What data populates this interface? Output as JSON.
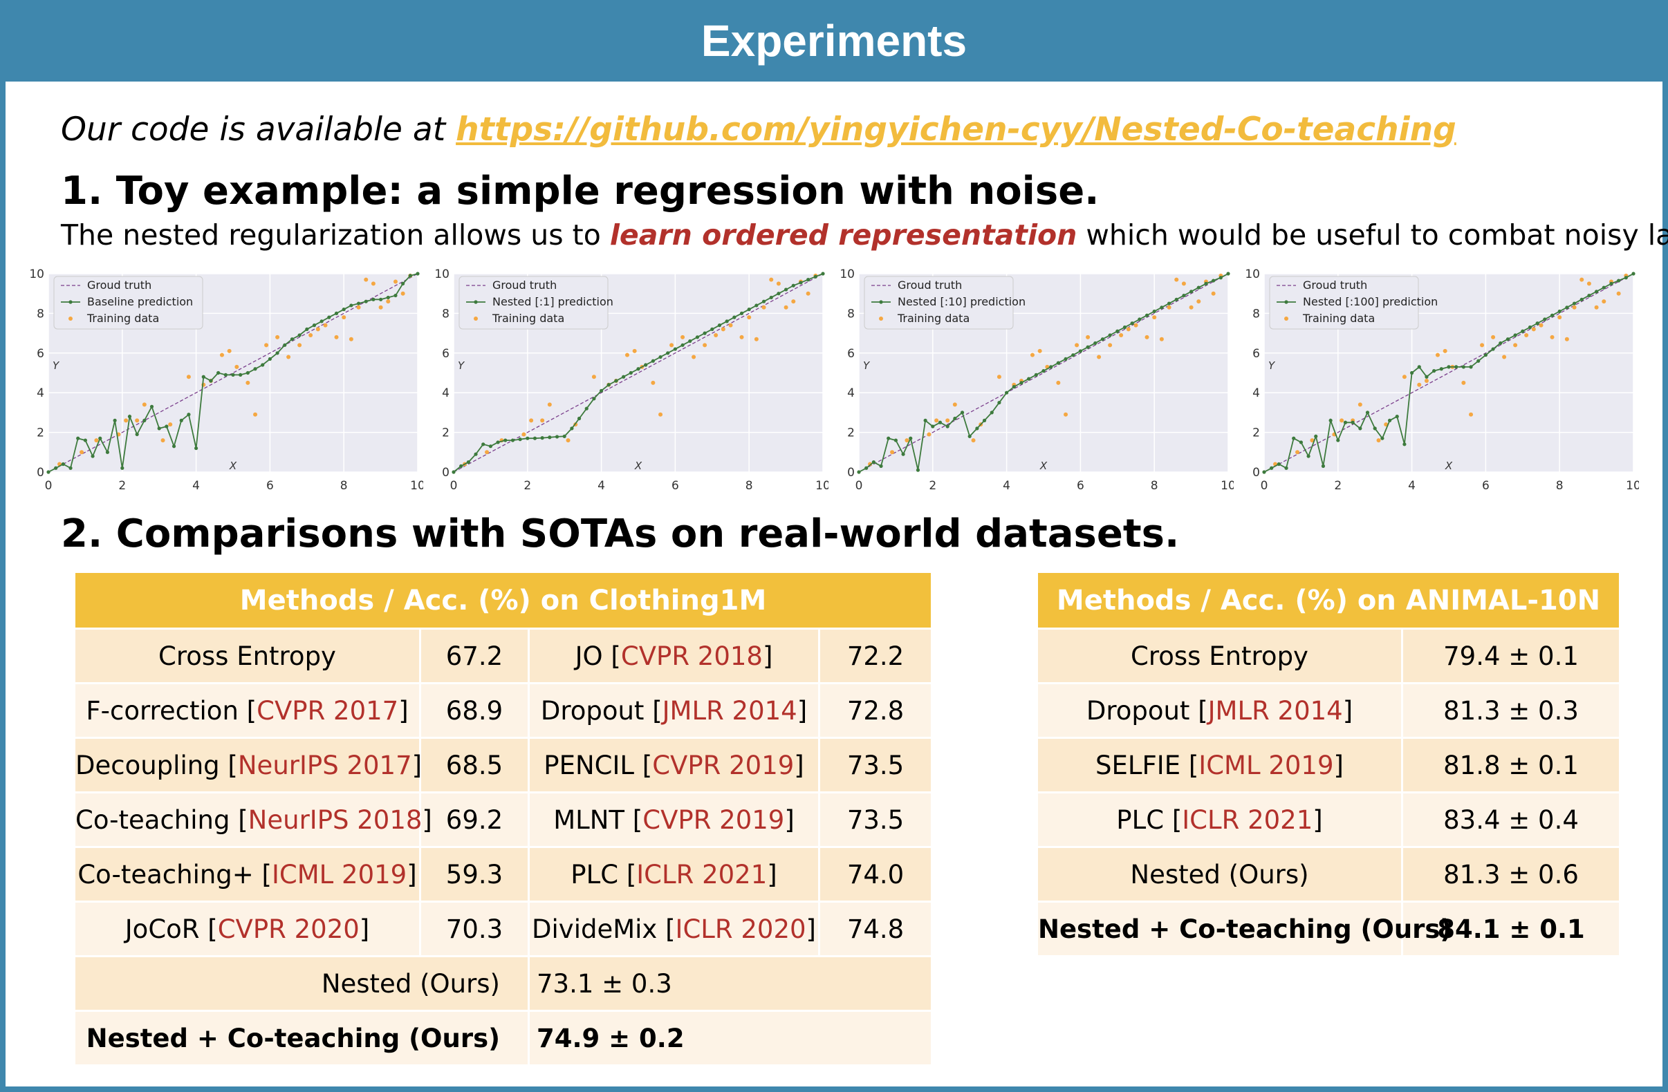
{
  "title": "Experiments",
  "code_line": {
    "prefix": "Our code is available at ",
    "url": "https://github.com/yingyichen-cyy/Nested-Co-teaching"
  },
  "section1": {
    "title": "1.  Toy example: a simple regression with noise.",
    "desc_before": "The nested regularization allows us to ",
    "desc_emphasis": "learn ordered representation",
    "desc_after": " which would be useful to combat noisy label."
  },
  "section2": {
    "title": "2. Comparisons with SOTAs on real-world datasets."
  },
  "colors": {
    "banner": "#3f87ad",
    "link": "#f2bb3d",
    "emphasis": "#b2312b",
    "table_header": "#f2c03c",
    "row_odd": "#fbe9cd",
    "row_even": "#fdf3e6",
    "prediction": "#3d7a3d",
    "truth": "#7b3f8c",
    "training": "#f5a742"
  },
  "chart_data": [
    {
      "type": "line",
      "xlabel": "X",
      "ylabel": "Y",
      "xlim": [
        0,
        10
      ],
      "ylim": [
        0,
        10
      ],
      "xticks": [
        "0",
        "2",
        "4",
        "6",
        "8",
        "10"
      ],
      "yticks": [
        "0",
        "2",
        "4",
        "6",
        "8",
        "10"
      ],
      "legend": [
        "Groud truth",
        "Baseline prediction",
        "Training data"
      ],
      "legend_position": "top-left",
      "grid": true,
      "series": [
        {
          "name": "Groud truth",
          "x": [
            0,
            10
          ],
          "y": [
            0,
            10
          ]
        },
        {
          "name": "Baseline prediction",
          "x": [
            0,
            0.2,
            0.4,
            0.6,
            0.8,
            1.0,
            1.2,
            1.4,
            1.6,
            1.8,
            2.0,
            2.2,
            2.4,
            2.6,
            2.8,
            3.0,
            3.2,
            3.4,
            3.6,
            3.8,
            4.0,
            4.2,
            4.4,
            4.6,
            4.8,
            5.0,
            5.2,
            5.4,
            5.6,
            5.8,
            6.0,
            6.2,
            6.4,
            6.6,
            6.8,
            7.0,
            7.2,
            7.4,
            7.6,
            7.8,
            8.0,
            8.2,
            8.4,
            8.6,
            8.8,
            9.0,
            9.2,
            9.4,
            9.6,
            9.8,
            10.0
          ],
          "y": [
            0,
            0.2,
            0.4,
            0.2,
            1.7,
            1.6,
            0.8,
            1.7,
            1.0,
            2.6,
            0.2,
            2.8,
            1.9,
            2.6,
            3.3,
            2.2,
            2.3,
            1.3,
            2.6,
            2.9,
            1.2,
            4.8,
            4.6,
            5.0,
            4.9,
            4.9,
            4.9,
            5.0,
            5.2,
            5.4,
            5.7,
            6.0,
            6.4,
            6.7,
            6.9,
            7.2,
            7.4,
            7.6,
            7.8,
            8.0,
            8.2,
            8.4,
            8.5,
            8.6,
            8.7,
            8.7,
            8.8,
            8.9,
            9.5,
            9.9,
            10.0
          ]
        },
        {
          "name": "Training data",
          "x": [
            0.3,
            0.9,
            1.3,
            1.9,
            2.1,
            2.4,
            2.6,
            3.1,
            3.3,
            3.8,
            4.2,
            4.4,
            4.7,
            4.9,
            5.1,
            5.4,
            5.6,
            5.9,
            6.2,
            6.5,
            6.8,
            7.1,
            7.3,
            7.5,
            7.8,
            8.0,
            8.2,
            8.4,
            8.6,
            8.8,
            9.0,
            9.2,
            9.4,
            9.6,
            9.8
          ],
          "y": [
            0.4,
            1.0,
            1.6,
            1.9,
            2.6,
            2.6,
            3.4,
            1.6,
            2.4,
            4.8,
            4.4,
            4.6,
            5.9,
            6.1,
            5.3,
            4.5,
            2.9,
            6.4,
            6.8,
            5.8,
            6.4,
            6.9,
            7.2,
            7.4,
            6.8,
            7.8,
            6.7,
            8.3,
            9.7,
            9.5,
            8.3,
            8.6,
            9.6,
            9.0,
            9.9
          ]
        }
      ]
    },
    {
      "type": "line",
      "xlabel": "X",
      "ylabel": "Y",
      "xlim": [
        0,
        10
      ],
      "ylim": [
        0,
        10
      ],
      "xticks": [
        "0",
        "2",
        "4",
        "6",
        "8",
        "10"
      ],
      "yticks": [
        "0",
        "2",
        "4",
        "6",
        "8",
        "10"
      ],
      "legend": [
        "Groud truth",
        "Nested [:1] prediction",
        "Training data"
      ],
      "legend_position": "top-left",
      "grid": true,
      "series": [
        {
          "name": "Groud truth",
          "x": [
            0,
            10
          ],
          "y": [
            0,
            10
          ]
        },
        {
          "name": "Nested [:1] prediction",
          "x": [
            0,
            0.2,
            0.4,
            0.6,
            0.8,
            1.0,
            1.2,
            1.4,
            1.6,
            1.8,
            2.0,
            2.2,
            2.4,
            2.6,
            2.8,
            3.0,
            3.2,
            3.4,
            3.6,
            3.8,
            4.0,
            4.2,
            4.4,
            4.6,
            4.8,
            5.0,
            5.2,
            5.4,
            5.6,
            5.8,
            6.0,
            6.2,
            6.4,
            6.6,
            6.8,
            7.0,
            7.2,
            7.4,
            7.6,
            7.8,
            8.0,
            8.2,
            8.4,
            8.6,
            8.8,
            9.0,
            9.2,
            9.4,
            9.6,
            9.8,
            10.0
          ],
          "y": [
            0,
            0.3,
            0.5,
            0.9,
            1.4,
            1.3,
            1.5,
            1.6,
            1.6,
            1.65,
            1.7,
            1.7,
            1.72,
            1.75,
            1.78,
            1.8,
            2.2,
            2.7,
            3.2,
            3.7,
            4.1,
            4.4,
            4.6,
            4.8,
            5.0,
            5.2,
            5.4,
            5.6,
            5.8,
            6.0,
            6.2,
            6.4,
            6.6,
            6.8,
            7.0,
            7.2,
            7.4,
            7.6,
            7.8,
            8.0,
            8.2,
            8.4,
            8.6,
            8.8,
            9.0,
            9.2,
            9.4,
            9.55,
            9.7,
            9.85,
            10.0
          ]
        },
        {
          "name": "Training data",
          "x": [
            0.3,
            0.9,
            1.3,
            1.9,
            2.1,
            2.4,
            2.6,
            3.1,
            3.3,
            3.8,
            4.2,
            4.4,
            4.7,
            4.9,
            5.1,
            5.4,
            5.6,
            5.9,
            6.2,
            6.5,
            6.8,
            7.1,
            7.3,
            7.5,
            7.8,
            8.0,
            8.2,
            8.4,
            8.6,
            8.8,
            9.0,
            9.2,
            9.4,
            9.6,
            9.8
          ],
          "y": [
            0.4,
            1.0,
            1.6,
            1.9,
            2.6,
            2.6,
            3.4,
            1.6,
            2.4,
            4.8,
            4.4,
            4.6,
            5.9,
            6.1,
            5.3,
            4.5,
            2.9,
            6.4,
            6.8,
            5.8,
            6.4,
            6.9,
            7.2,
            7.4,
            6.8,
            7.8,
            6.7,
            8.3,
            9.7,
            9.5,
            8.3,
            8.6,
            9.6,
            9.0,
            9.9
          ]
        }
      ]
    },
    {
      "type": "line",
      "xlabel": "X",
      "ylabel": "Y",
      "xlim": [
        0,
        10
      ],
      "ylim": [
        0,
        10
      ],
      "xticks": [
        "0",
        "2",
        "4",
        "6",
        "8",
        "10"
      ],
      "yticks": [
        "0",
        "2",
        "4",
        "6",
        "8",
        "10"
      ],
      "legend": [
        "Groud truth",
        "Nested [:10] prediction",
        "Training data"
      ],
      "legend_position": "top-left",
      "grid": true,
      "series": [
        {
          "name": "Groud truth",
          "x": [
            0,
            10
          ],
          "y": [
            0,
            10
          ]
        },
        {
          "name": "Nested [:10] prediction",
          "x": [
            0,
            0.2,
            0.4,
            0.6,
            0.8,
            1.0,
            1.2,
            1.4,
            1.6,
            1.8,
            2.0,
            2.2,
            2.4,
            2.6,
            2.8,
            3.0,
            3.2,
            3.4,
            3.6,
            3.8,
            4.0,
            4.2,
            4.4,
            4.6,
            4.8,
            5.0,
            5.2,
            5.4,
            5.6,
            5.8,
            6.0,
            6.2,
            6.4,
            6.6,
            6.8,
            7.0,
            7.2,
            7.4,
            7.6,
            7.8,
            8.0,
            8.2,
            8.4,
            8.6,
            8.8,
            9.0,
            9.2,
            9.4,
            9.6,
            9.8,
            10.0
          ],
          "y": [
            0,
            0.2,
            0.5,
            0.3,
            1.7,
            1.6,
            0.9,
            1.7,
            0.1,
            2.6,
            2.3,
            2.5,
            2.3,
            2.7,
            3.0,
            1.8,
            2.2,
            2.6,
            3.0,
            3.5,
            4.0,
            4.3,
            4.5,
            4.7,
            4.9,
            5.1,
            5.3,
            5.5,
            5.7,
            5.9,
            6.1,
            6.3,
            6.5,
            6.7,
            6.9,
            7.1,
            7.3,
            7.5,
            7.7,
            7.9,
            8.1,
            8.3,
            8.5,
            8.7,
            8.9,
            9.1,
            9.3,
            9.5,
            9.65,
            9.8,
            10.0
          ]
        },
        {
          "name": "Training data",
          "x": [
            0.3,
            0.9,
            1.3,
            1.9,
            2.1,
            2.4,
            2.6,
            3.1,
            3.3,
            3.8,
            4.2,
            4.4,
            4.7,
            4.9,
            5.1,
            5.4,
            5.6,
            5.9,
            6.2,
            6.5,
            6.8,
            7.1,
            7.3,
            7.5,
            7.8,
            8.0,
            8.2,
            8.4,
            8.6,
            8.8,
            9.0,
            9.2,
            9.4,
            9.6,
            9.8
          ],
          "y": [
            0.4,
            1.0,
            1.6,
            1.9,
            2.6,
            2.6,
            3.4,
            1.6,
            2.4,
            4.8,
            4.4,
            4.6,
            5.9,
            6.1,
            5.3,
            4.5,
            2.9,
            6.4,
            6.8,
            5.8,
            6.4,
            6.9,
            7.2,
            7.4,
            6.8,
            7.8,
            6.7,
            8.3,
            9.7,
            9.5,
            8.3,
            8.6,
            9.6,
            9.0,
            9.9
          ]
        }
      ]
    },
    {
      "type": "line",
      "xlabel": "X",
      "ylabel": "Y",
      "xlim": [
        0,
        10
      ],
      "ylim": [
        0,
        10
      ],
      "xticks": [
        "0",
        "2",
        "4",
        "6",
        "8",
        "10"
      ],
      "yticks": [
        "0",
        "2",
        "4",
        "6",
        "8",
        "10"
      ],
      "legend": [
        "Groud truth",
        "Nested [:100] prediction",
        "Training data"
      ],
      "legend_position": "top-left",
      "grid": true,
      "series": [
        {
          "name": "Groud truth",
          "x": [
            0,
            10
          ],
          "y": [
            0,
            10
          ]
        },
        {
          "name": "Nested [:100] prediction",
          "x": [
            0,
            0.2,
            0.4,
            0.6,
            0.8,
            1.0,
            1.2,
            1.4,
            1.6,
            1.8,
            2.0,
            2.2,
            2.4,
            2.6,
            2.8,
            3.0,
            3.2,
            3.4,
            3.6,
            3.8,
            4.0,
            4.2,
            4.4,
            4.6,
            4.8,
            5.0,
            5.2,
            5.4,
            5.6,
            5.8,
            6.0,
            6.2,
            6.4,
            6.6,
            6.8,
            7.0,
            7.2,
            7.4,
            7.6,
            7.8,
            8.0,
            8.2,
            8.4,
            8.6,
            8.8,
            9.0,
            9.2,
            9.4,
            9.6,
            9.8,
            10.0
          ],
          "y": [
            0,
            0.2,
            0.4,
            0.2,
            1.7,
            1.5,
            0.8,
            1.8,
            0.3,
            2.6,
            1.6,
            2.5,
            2.5,
            2.2,
            3.0,
            2.2,
            1.7,
            2.6,
            2.8,
            1.4,
            5.0,
            5.3,
            4.8,
            5.1,
            5.2,
            5.3,
            5.3,
            5.3,
            5.3,
            5.6,
            5.9,
            6.2,
            6.5,
            6.7,
            6.9,
            7.1,
            7.3,
            7.5,
            7.7,
            7.9,
            8.1,
            8.3,
            8.5,
            8.7,
            8.9,
            9.1,
            9.3,
            9.5,
            9.65,
            9.8,
            10.0
          ]
        },
        {
          "name": "Training data",
          "x": [
            0.3,
            0.9,
            1.3,
            1.9,
            2.1,
            2.4,
            2.6,
            3.1,
            3.3,
            3.8,
            4.2,
            4.4,
            4.7,
            4.9,
            5.1,
            5.4,
            5.6,
            5.9,
            6.2,
            6.5,
            6.8,
            7.1,
            7.3,
            7.5,
            7.8,
            8.0,
            8.2,
            8.4,
            8.6,
            8.8,
            9.0,
            9.2,
            9.4,
            9.6,
            9.8
          ],
          "y": [
            0.4,
            1.0,
            1.6,
            1.9,
            2.6,
            2.6,
            3.4,
            1.6,
            2.4,
            4.8,
            4.4,
            4.6,
            5.9,
            6.1,
            5.3,
            4.5,
            2.9,
            6.4,
            6.8,
            5.8,
            6.4,
            6.9,
            7.2,
            7.4,
            6.8,
            7.8,
            6.7,
            8.3,
            9.7,
            9.5,
            8.3,
            8.6,
            9.6,
            9.0,
            9.9
          ]
        }
      ]
    }
  ],
  "clothing_table": {
    "header": "Methods / Acc. (%) on Clothing1M",
    "rows": [
      {
        "m1": "Cross Entropy",
        "r1": "",
        "v1": "67.2",
        "m2": "JO",
        "r2": "CVPR 2018",
        "v2": "72.2"
      },
      {
        "m1": "F-correction",
        "r1": "CVPR 2017",
        "v1": "68.9",
        "m2": "Dropout",
        "r2": "JMLR 2014",
        "v2": "72.8"
      },
      {
        "m1": "Decoupling",
        "r1": "NeurIPS 2017",
        "v1": "68.5",
        "m2": "PENCIL",
        "r2": "CVPR 2019",
        "v2": "73.5"
      },
      {
        "m1": "Co-teaching",
        "r1": "NeurIPS 2018",
        "v1": "69.2",
        "m2": "MLNT",
        "r2": "CVPR 2019",
        "v2": "73.5"
      },
      {
        "m1": "Co-teaching+",
        "r1": "ICML 2019",
        "v1": "59.3",
        "m2": "PLC",
        "r2": "ICLR 2021",
        "v2": "74.0"
      },
      {
        "m1": "JoCoR",
        "r1": "CVPR 2020",
        "v1": "70.3",
        "m2": "DivideMix",
        "r2": "ICLR 2020",
        "v2": "74.8"
      }
    ],
    "ours": [
      {
        "method": "Nested (Ours)",
        "value": "73.1 ± 0.3"
      },
      {
        "method": "Nested + Co-teaching (Ours)",
        "value": "74.9 ± 0.2"
      }
    ]
  },
  "animal_table": {
    "header": "Methods / Acc. (%) on ANIMAL-10N",
    "rows": [
      {
        "m": "Cross Entropy",
        "r": "",
        "v": "79.4 ± 0.1"
      },
      {
        "m": "Dropout",
        "r": "JMLR 2014",
        "v": "81.3 ± 0.3"
      },
      {
        "m": "SELFIE",
        "r": "ICML 2019",
        "v": "81.8 ± 0.1"
      },
      {
        "m": "PLC",
        "r": "ICLR 2021",
        "v": "83.4 ± 0.4"
      },
      {
        "m": "Nested (Ours)",
        "r": "",
        "v": "81.3 ± 0.6"
      },
      {
        "m": "Nested + Co-teaching (Ours)",
        "r": "",
        "v": "84.1 ± 0.1"
      }
    ]
  }
}
